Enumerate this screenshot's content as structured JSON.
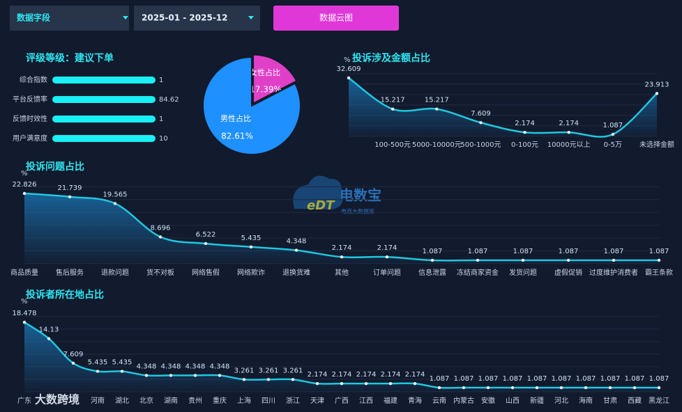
{
  "controls": {
    "field": "数据字段",
    "range": "2025-01 - 2025-12",
    "button": "数据云图"
  },
  "rating": {
    "title": "评级等级：建议下单",
    "items": [
      {
        "label": "综合指数",
        "value": 1
      },
      {
        "label": "平台反馈率",
        "value": 84.62
      },
      {
        "label": "反馈时效性",
        "value": 1
      },
      {
        "label": "用户满意度",
        "value": 10
      }
    ]
  },
  "watermark": {
    "brand": "电数宝",
    "sub": "电商大数据库",
    "logo": "eDT",
    "corner": "大数跨境"
  },
  "chart_data": [
    {
      "type": "pie",
      "categories": [
        "女性占比",
        "男性占比"
      ],
      "values": [
        17.39,
        82.61
      ],
      "value_labels": [
        "17.39%",
        "82.61%"
      ],
      "colors": [
        "#e040c8",
        "#1e90ff"
      ]
    },
    {
      "type": "line",
      "title": "投诉涉及金额占比",
      "y_label": "%",
      "color": "#1fc8e0",
      "categories": [
        null,
        "100-500元",
        "5000-10000元",
        "500-1000元",
        "0-100元",
        "10000元以上",
        "0-5万",
        "未选择金额"
      ],
      "values": [
        32.609,
        15.217,
        15.217,
        7.609,
        2.174,
        2.174,
        1.087,
        23.913
      ],
      "ylim": [
        0,
        35
      ]
    },
    {
      "type": "line",
      "title": "投诉问题占比",
      "y_label": "%",
      "color": "#1fc8e0",
      "categories": [
        "商品质量",
        "售后服务",
        "退款问题",
        "货不对板",
        "网络售假",
        "网络欺诈",
        "退换货难",
        "其他",
        "订单问题",
        "信息泄露",
        "冻结商家资金",
        "发货问题",
        "虚假促销",
        "过度维护消费者",
        "霸王条款"
      ],
      "values": [
        22.826,
        21.739,
        19.565,
        8.696,
        6.522,
        5.435,
        4.348,
        2.174,
        2.174,
        1.087,
        1.087,
        1.087,
        1.087,
        1.087,
        1.087
      ],
      "ylim": [
        0,
        25
      ]
    },
    {
      "type": "line",
      "title": "投诉者所在地占比",
      "y_label": "%",
      "color": "#1fc8e0",
      "categories": [
        "广东",
        null,
        null,
        "河南",
        "湖北",
        "北京",
        "湖南",
        "贵州",
        "重庆",
        "上海",
        "四川",
        "浙江",
        "天津",
        "广西",
        "江西",
        "福建",
        "青海",
        "云南",
        "内蒙古",
        "安徽",
        "山西",
        "新疆",
        "河北",
        "海南",
        "甘肃",
        "西藏",
        "黑龙江"
      ],
      "values": [
        18.478,
        14.13,
        7.609,
        5.435,
        5.435,
        4.348,
        4.348,
        4.348,
        4.348,
        3.261,
        3.261,
        3.261,
        2.174,
        2.174,
        2.174,
        2.174,
        2.174,
        1.087,
        1.087,
        1.087,
        1.087,
        1.087,
        1.087,
        1.087,
        1.087,
        1.087,
        1.087
      ],
      "ylim": [
        0,
        20
      ]
    }
  ]
}
